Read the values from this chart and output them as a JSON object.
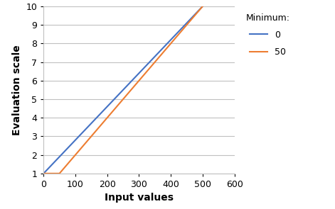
{
  "title": "",
  "xlabel": "Input values",
  "ylabel": "Evaluation scale",
  "xlim": [
    0,
    600
  ],
  "ylim": [
    1,
    10
  ],
  "xticks": [
    0,
    100,
    200,
    300,
    400,
    500,
    600
  ],
  "yticks": [
    1,
    2,
    3,
    4,
    5,
    6,
    7,
    8,
    9,
    10
  ],
  "line0_x": [
    0,
    500
  ],
  "line0_y": [
    1,
    10
  ],
  "line0_color": "#4472C4",
  "line0_label": "0",
  "line1_x": [
    0,
    50,
    500
  ],
  "line1_y": [
    1,
    1,
    10
  ],
  "line1_color": "#ED7D31",
  "line1_label": "50",
  "legend_title": "Minimum:",
  "legend_fontsize": 9,
  "legend_title_fontsize": 9,
  "axis_label_fontsize": 10,
  "tick_fontsize": 9,
  "line_width": 1.5,
  "background_color": "#ffffff",
  "grid_color": "#c0c0c0"
}
